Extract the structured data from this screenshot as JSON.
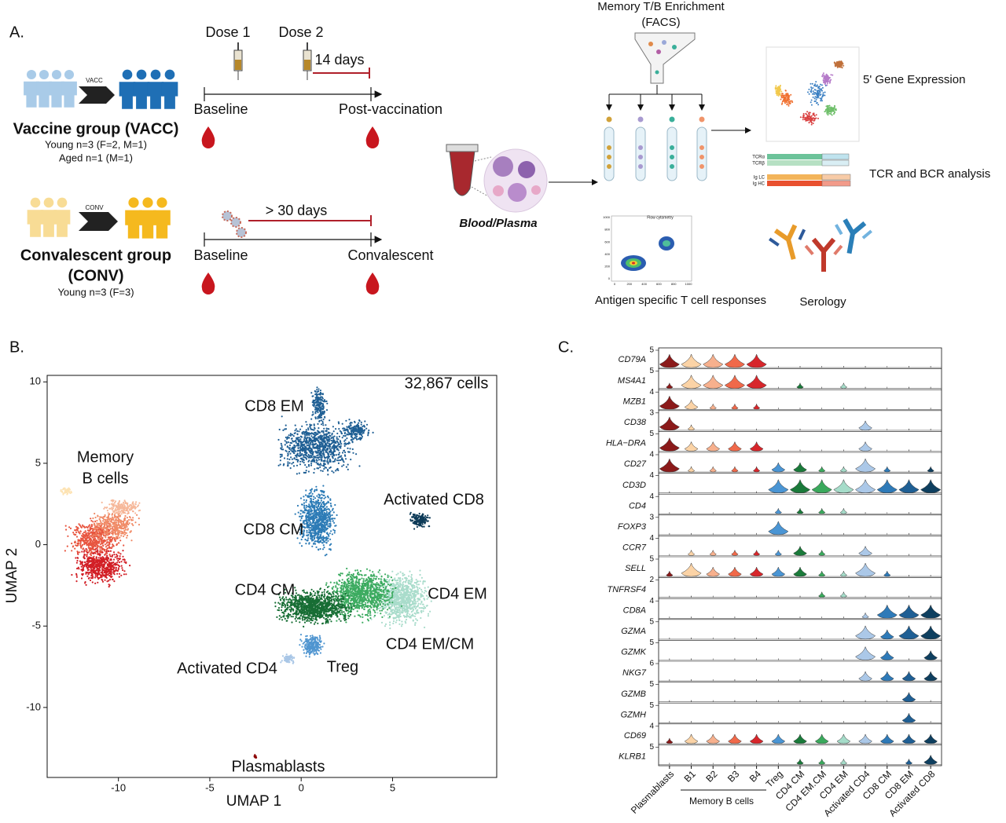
{
  "panel_a": {
    "label": "A.",
    "vaccine": {
      "arrow_label": "VACC",
      "title": "Vaccine group (VACC)",
      "details": [
        "Young n=3 (F=2, M=1)",
        "Aged n=1 (M=1)"
      ],
      "dose_1": "Dose 1",
      "dose_2": "Dose 2",
      "interval": "14 days",
      "start": "Baseline",
      "end": "Post-vaccination"
    },
    "convalescent": {
      "arrow_label": "CONV",
      "title": [
        "Convalescent group",
        "(CONV)"
      ],
      "details": [
        "Young n=3 (F=3)"
      ],
      "interval": "> 30 days",
      "start": "Baseline",
      "end": "Convalescent"
    },
    "sample": "Blood/Plasma",
    "enrichment": [
      "Memory T/B Enrichment",
      "(FACS)"
    ],
    "gene_expression": "5' Gene Expression",
    "receptor": {
      "tracks": [
        "TCRα",
        "TCRβ",
        "Ig LC",
        "Ig HC"
      ],
      "label": "TCR and BCR analysis"
    },
    "flow": {
      "title": "Flow cytometry",
      "ticks": [
        0,
        200,
        400,
        600,
        800,
        1000
      ],
      "label": "Antigen specific T cell responses"
    },
    "serology": "Serology"
  },
  "panel_b": {
    "label": "B.",
    "x_label": "UMAP 1",
    "y_label": "UMAP 2",
    "xlim": [
      -13.9,
      10.7
    ],
    "ylim": [
      -14.3,
      10.4
    ],
    "xticks": [
      -10,
      -5,
      0,
      5
    ],
    "yticks": [
      -10,
      -5,
      0,
      5,
      10
    ],
    "cell_count": "32,867 cells",
    "clusters": [
      "CD8 EM",
      "Memory",
      "B cells",
      "Activated CD8",
      "CD8 CM",
      "CD4 CM",
      "CD4 EM",
      "CD4 EM/CM",
      "Activated CD4",
      "Treg",
      "Plasmablasts"
    ]
  },
  "panel_c": {
    "label": "C.",
    "group_label": "Memory B cells",
    "cell_types": [
      "Plasmablasts",
      "B1",
      "B2",
      "B3",
      "B4",
      "Treg",
      "CD4 CM",
      "CD4 EM.CM",
      "CD4 EM",
      "Activated CD4",
      "CD8 CM",
      "CD8 EM",
      "Activated CD8"
    ],
    "colors": [
      "#8b1a1a",
      "#fbd3a6",
      "#f7b08d",
      "#f0694a",
      "#d7262b",
      "#4a95d4",
      "#1a7a3a",
      "#3aa95c",
      "#a5dcc9",
      "#abc8e8",
      "#2e7ab8",
      "#1f5f94",
      "#0e3f5f"
    ],
    "genes": [
      {
        "name": "CD79A",
        "max": 5,
        "levels": [
          3,
          3,
          3,
          3,
          3,
          0,
          0,
          0,
          0,
          0,
          0,
          0,
          0
        ]
      },
      {
        "name": "MS4A1",
        "max": 5,
        "levels": [
          1,
          3,
          3,
          3,
          3,
          0,
          1,
          0,
          1,
          0,
          0,
          0,
          0
        ]
      },
      {
        "name": "MZB1",
        "max": 4,
        "levels": [
          3,
          2,
          1,
          1,
          1,
          0,
          0,
          0,
          0,
          0,
          0,
          0,
          0
        ]
      },
      {
        "name": "CD38",
        "max": 3,
        "levels": [
          3,
          1,
          0,
          0,
          0,
          0,
          0,
          0,
          0,
          2,
          0,
          0,
          0
        ]
      },
      {
        "name": "HLA−DRA",
        "max": 5,
        "levels": [
          3,
          2,
          2,
          2,
          2,
          0,
          0,
          0,
          0,
          2,
          0,
          0,
          0
        ]
      },
      {
        "name": "CD27",
        "max": 4,
        "levels": [
          3,
          1,
          1,
          1,
          1,
          2,
          2,
          1,
          1,
          3,
          1,
          0,
          1
        ]
      },
      {
        "name": "CD3D",
        "max": 4,
        "levels": [
          0,
          0,
          0,
          0,
          0,
          3,
          3,
          3,
          3,
          3,
          3,
          3,
          3
        ]
      },
      {
        "name": "CD4",
        "max": 4,
        "levels": [
          0,
          0,
          0,
          0,
          0,
          1,
          1,
          1,
          1,
          0,
          0,
          0,
          0
        ]
      },
      {
        "name": "FOXP3",
        "max": 3,
        "levels": [
          0,
          0,
          0,
          0,
          0,
          3,
          0,
          0,
          0,
          0,
          0,
          0,
          0
        ]
      },
      {
        "name": "CCR7",
        "max": 4,
        "levels": [
          0,
          1,
          1,
          1,
          1,
          1,
          2,
          1,
          0,
          2,
          0,
          0,
          0
        ]
      },
      {
        "name": "SELL",
        "max": 5,
        "levels": [
          1,
          3,
          2,
          2,
          2,
          2,
          2,
          1,
          1,
          3,
          1,
          0,
          0
        ]
      },
      {
        "name": "TNFRSF4",
        "max": 2,
        "levels": [
          0,
          0,
          0,
          0,
          0,
          0,
          0,
          1,
          1,
          0,
          0,
          0,
          0
        ]
      },
      {
        "name": "CD8A",
        "max": 4,
        "levels": [
          0,
          0,
          0,
          0,
          0,
          0,
          0,
          0,
          0,
          1,
          3,
          3,
          3
        ]
      },
      {
        "name": "GZMA",
        "max": 5,
        "levels": [
          0,
          0,
          0,
          0,
          0,
          0,
          0,
          0,
          0,
          3,
          2,
          3,
          3
        ]
      },
      {
        "name": "GZMK",
        "max": 5,
        "levels": [
          0,
          0,
          0,
          0,
          0,
          0,
          0,
          0,
          0,
          3,
          2,
          0,
          2
        ]
      },
      {
        "name": "NKG7",
        "max": 6,
        "levels": [
          0,
          0,
          0,
          0,
          0,
          0,
          0,
          0,
          0,
          2,
          2,
          2,
          2
        ]
      },
      {
        "name": "GZMB",
        "max": 5,
        "levels": [
          0,
          0,
          0,
          0,
          0,
          0,
          0,
          0,
          0,
          0,
          0,
          2,
          0
        ]
      },
      {
        "name": "GZMH",
        "max": 5,
        "levels": [
          0,
          0,
          0,
          0,
          0,
          0,
          0,
          0,
          0,
          0,
          0,
          2,
          0
        ]
      },
      {
        "name": "CD69",
        "max": 4,
        "levels": [
          1,
          2,
          2,
          2,
          2,
          2,
          2,
          2,
          2,
          2,
          2,
          2,
          2
        ]
      },
      {
        "name": "KLRB1",
        "max": 5,
        "levels": [
          0,
          0,
          0,
          0,
          0,
          0,
          1,
          1,
          1,
          0,
          0,
          1,
          2
        ]
      }
    ]
  }
}
